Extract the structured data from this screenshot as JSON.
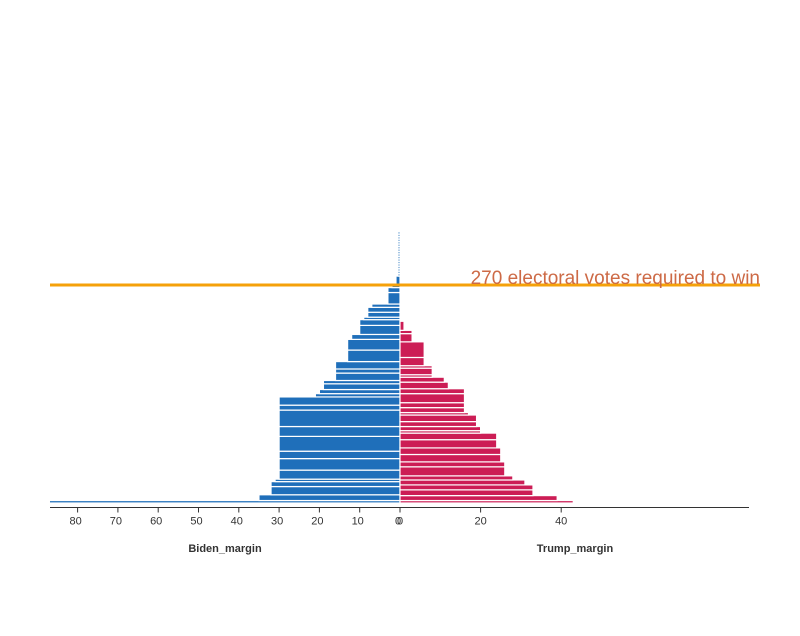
{
  "chart_data": {
    "type": "bar",
    "orientation": "horizontal",
    "layout": "diverging",
    "colors": {
      "biden": "#1f6fba",
      "trump": "#cc1d55",
      "threshold": "#f5a10a",
      "annotation": "#cd6a46",
      "axis": "#333333"
    },
    "left_axis": {
      "label": "Biden_margin",
      "ticks": [
        80,
        70,
        60,
        50,
        40,
        30,
        20,
        10,
        0
      ],
      "range": [
        0,
        87
      ]
    },
    "right_axis": {
      "label": "Trump_margin",
      "ticks": [
        0,
        20,
        40
      ],
      "range": [
        0,
        87
      ]
    },
    "series": [
      {
        "name": "Biden_margin",
        "side": "left",
        "values": [
          87,
          35,
          32,
          32,
          31,
          30,
          30,
          30,
          30,
          30,
          30,
          30,
          30,
          21,
          20,
          19,
          19,
          16,
          16,
          16,
          13,
          13,
          12,
          10,
          10,
          9,
          8,
          8,
          7,
          3,
          3,
          2,
          1,
          0.5,
          0.5,
          0.5,
          0.5,
          0.5,
          0.5,
          0.5,
          0.5,
          0.5,
          0.5,
          0.5,
          0.5,
          0.5,
          0.5,
          0.5,
          0.5,
          0.5,
          0.5
        ],
        "electoral_votes": [
          3,
          7,
          10,
          6,
          3,
          11,
          14,
          9,
          18,
          12,
          20,
          6,
          10,
          4,
          5,
          7,
          4,
          9,
          5,
          9,
          14,
          13,
          6,
          11,
          7,
          3,
          6,
          6,
          4,
          14,
          6,
          4,
          10,
          3,
          3,
          3,
          3,
          3,
          3,
          3,
          3,
          3,
          3,
          3,
          3,
          3,
          3,
          3,
          3,
          3,
          3
        ]
      },
      {
        "name": "Trump_margin",
        "side": "right",
        "values": [
          43,
          39,
          33,
          33,
          31,
          28,
          26,
          26,
          25,
          25,
          24,
          24,
          20,
          20,
          19,
          19,
          17,
          16,
          16,
          16,
          16,
          12,
          11,
          8,
          8,
          8,
          6,
          6,
          3,
          3,
          1
        ],
        "electoral_votes": [
          3,
          6,
          7,
          6,
          6,
          5,
          11,
          6,
          9,
          8,
          10,
          8,
          3,
          5,
          6,
          8,
          3,
          6,
          6,
          11,
          6,
          8,
          6,
          3,
          8,
          3,
          10,
          19,
          10,
          4,
          11
        ]
      }
    ],
    "threshold": {
      "electoral_votes": 270,
      "label": "270 electoral votes required to win"
    },
    "xlabel_left": "Biden_margin",
    "xlabel_right": "Trump_margin"
  }
}
